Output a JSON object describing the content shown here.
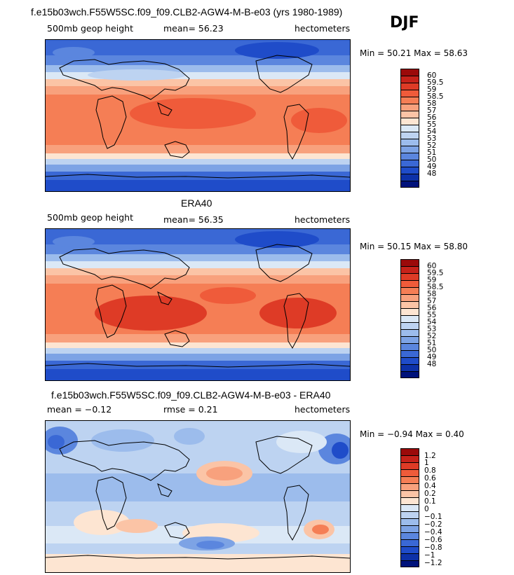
{
  "season": "DJF",
  "panels": [
    {
      "title": "f.e15b03wch.F55W5SC.f09_f09.CLB2-AGW4-M-B-e03 (yrs 1980-1989)",
      "variable": "500mb geop height",
      "stat1": "mean=  56.23",
      "stat2": "",
      "units": "hectometers",
      "minmax": "Min =  50.21 Max =  58.63",
      "colors": [
        "#9b0a0a",
        "#c6221a",
        "#de3b26",
        "#ef5b3a",
        "#f57e55",
        "#f8a17d",
        "#fbc4a6",
        "#fde5d2",
        "#dbe8f6",
        "#bdd3f1",
        "#9cbcec",
        "#7da3e5",
        "#5b86de",
        "#3a68d5",
        "#1f4cc9",
        "#0d31a8",
        "#00127b"
      ],
      "labels": [
        "60",
        "59.5",
        "59",
        "58.5",
        "58",
        "57",
        "56",
        "55",
        "54",
        "53",
        "52",
        "51",
        "50",
        "49",
        "48"
      ]
    },
    {
      "title": "ERA40",
      "variable": "500mb geop height",
      "stat1": "mean=  56.35",
      "stat2": "",
      "units": "hectometers",
      "minmax": "Min =  50.15 Max =  58.80",
      "colors": [
        "#9b0a0a",
        "#c6221a",
        "#de3b26",
        "#ef5b3a",
        "#f57e55",
        "#f8a17d",
        "#fbc4a6",
        "#fde5d2",
        "#dbe8f6",
        "#bdd3f1",
        "#9cbcec",
        "#7da3e5",
        "#5b86de",
        "#3a68d5",
        "#1f4cc9",
        "#0d31a8",
        "#00127b"
      ],
      "labels": [
        "60",
        "59.5",
        "59",
        "58.5",
        "58",
        "57",
        "56",
        "55",
        "54",
        "53",
        "52",
        "51",
        "50",
        "49",
        "48"
      ]
    },
    {
      "title": "f.e15b03wch.F55W5SC.f09_f09.CLB2-AGW4-M-B-e03 - ERA40",
      "variable": "",
      "stat1": "mean =  −0.12",
      "stat2": "rmse =   0.21",
      "units": "hectometers",
      "minmax": "Min =  −0.94 Max =   0.40",
      "colors": [
        "#9b0a0a",
        "#c6221a",
        "#de3b26",
        "#ef5b3a",
        "#f57e55",
        "#f8a17d",
        "#fbc4a6",
        "#fde5d2",
        "#dbe8f6",
        "#bdd3f1",
        "#9cbcec",
        "#7da3e5",
        "#5b86de",
        "#3a68d5",
        "#1f4cc9",
        "#0d31a8",
        "#00127b"
      ],
      "labels": [
        "1.2",
        "1",
        "0.8",
        "0.6",
        "0.4",
        "0.2",
        "0.1",
        "0",
        "−0.1",
        "−0.2",
        "−0.4",
        "−0.6",
        "−0.8",
        "−1",
        "−1.2"
      ]
    }
  ]
}
